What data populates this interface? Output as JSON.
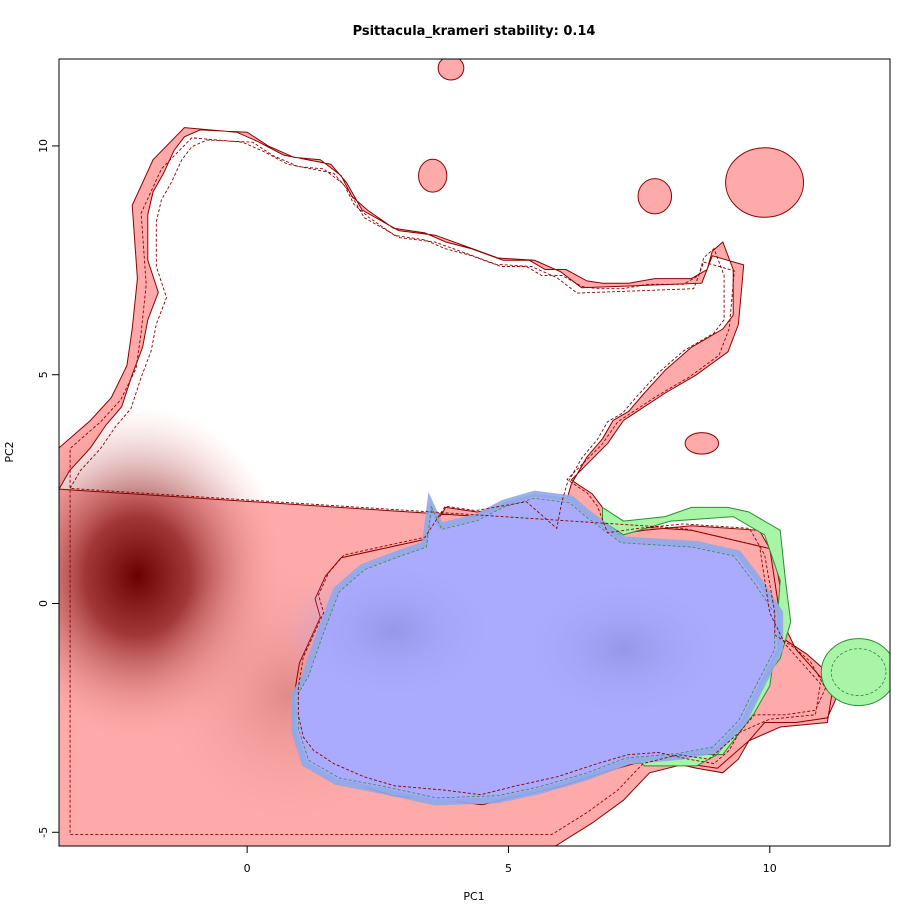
{
  "chart_data": {
    "type": "contour-density",
    "title": "Psittacula_krameri stability: 0.14",
    "xlabel": "PC1",
    "ylabel": "PC2",
    "xlim": [
      -3.6,
      12.3
    ],
    "ylim": [
      -5.3,
      11.9
    ],
    "x_ticks": [
      0,
      5,
      10
    ],
    "y_ticks": [
      -5,
      0,
      5,
      10
    ],
    "grid": false,
    "legend": "none",
    "regions": [
      {
        "id": "native-range",
        "color": "#ff9999",
        "outline_color": "#8b0000",
        "density_peak": [
          -2.1,
          0.6
        ],
        "outline": [
          [
            -3.6,
            2.5
          ],
          [
            -3.4,
            2.9
          ],
          [
            -3.0,
            3.4
          ],
          [
            -2.7,
            3.9
          ],
          [
            -2.4,
            4.3
          ],
          [
            -2.2,
            5.0
          ],
          [
            -2.0,
            5.6
          ],
          [
            -1.9,
            6.2
          ],
          [
            -1.7,
            6.8
          ],
          [
            -1.9,
            7.5
          ],
          [
            -1.9,
            8.5
          ],
          [
            -1.8,
            9.0
          ],
          [
            -1.6,
            9.4
          ],
          [
            -1.4,
            9.9
          ],
          [
            -1.2,
            10.2
          ],
          [
            -0.9,
            10.35
          ],
          [
            0.0,
            10.3
          ],
          [
            0.4,
            10.0
          ],
          [
            0.9,
            9.75
          ],
          [
            1.4,
            9.7
          ],
          [
            1.8,
            9.35
          ],
          [
            2.0,
            8.9
          ],
          [
            2.3,
            8.6
          ],
          [
            2.8,
            8.2
          ],
          [
            3.4,
            8.1
          ],
          [
            3.8,
            7.9
          ],
          [
            4.3,
            7.75
          ],
          [
            4.9,
            7.5
          ],
          [
            5.4,
            7.5
          ],
          [
            5.7,
            7.3
          ],
          [
            6.1,
            7.3
          ],
          [
            6.5,
            7.05
          ],
          [
            6.8,
            7.0
          ],
          [
            7.3,
            7.0
          ],
          [
            7.8,
            7.1
          ],
          [
            8.5,
            7.1
          ],
          [
            8.8,
            7.3
          ],
          [
            8.9,
            7.7
          ],
          [
            9.1,
            7.9
          ],
          [
            9.3,
            7.3
          ],
          [
            9.3,
            6.3
          ],
          [
            9.1,
            6.0
          ],
          [
            8.5,
            5.6
          ],
          [
            8.0,
            5.1
          ],
          [
            7.6,
            4.6
          ],
          [
            7.3,
            4.2
          ],
          [
            7.0,
            4.0
          ],
          [
            6.8,
            3.6
          ],
          [
            6.5,
            3.2
          ],
          [
            6.2,
            2.6
          ],
          [
            6.1,
            2.2
          ],
          [
            6.0,
            1.6
          ],
          [
            5.4,
            2.2
          ],
          [
            4.4,
            2.0
          ],
          [
            3.8,
            2.1
          ],
          [
            3.4,
            1.4
          ],
          [
            2.6,
            1.2
          ],
          [
            1.8,
            1.0
          ],
          [
            1.5,
            0.6
          ],
          [
            1.3,
            0.1
          ],
          [
            1.4,
            -0.3
          ],
          [
            1.2,
            -0.8
          ],
          [
            1.0,
            -1.3
          ],
          [
            0.9,
            -2.0
          ],
          [
            0.9,
            -2.6
          ],
          [
            1.0,
            -3.1
          ],
          [
            1.2,
            -3.4
          ],
          [
            1.6,
            -3.7
          ],
          [
            2.2,
            -4.0
          ],
          [
            2.8,
            -4.2
          ],
          [
            3.8,
            -4.3
          ],
          [
            4.5,
            -4.4
          ],
          [
            5.2,
            -4.2
          ],
          [
            6.0,
            -4.0
          ],
          [
            6.8,
            -3.7
          ],
          [
            7.4,
            -3.5
          ],
          [
            8.0,
            -3.45
          ],
          [
            8.6,
            -3.6
          ],
          [
            9.1,
            -3.7
          ],
          [
            9.4,
            -3.4
          ],
          [
            9.6,
            -3.0
          ],
          [
            9.9,
            -2.6
          ],
          [
            10.5,
            -2.6
          ],
          [
            11.1,
            -2.5
          ],
          [
            11.3,
            -2.0
          ],
          [
            11.0,
            -1.4
          ],
          [
            10.7,
            -1.1
          ],
          [
            10.3,
            -0.8
          ],
          [
            10.3,
            -0.3
          ],
          [
            10.1,
            1.0
          ],
          [
            9.8,
            1.6
          ],
          [
            8.5,
            1.7
          ],
          [
            7.6,
            1.6
          ],
          [
            7.0,
            1.5
          ],
          [
            6.8,
            2.1
          ],
          [
            6.6,
            2.4
          ],
          [
            6.2,
            2.7
          ],
          [
            6.9,
            3.5
          ],
          [
            7.2,
            4.0
          ],
          [
            7.6,
            4.3
          ],
          [
            8.0,
            4.6
          ],
          [
            8.6,
            5.0
          ],
          [
            9.2,
            5.5
          ],
          [
            9.4,
            6.1
          ],
          [
            9.5,
            7.4
          ],
          [
            8.9,
            7.6
          ],
          [
            8.7,
            7.0
          ],
          [
            6.4,
            6.9
          ],
          [
            6.0,
            7.25
          ],
          [
            5.5,
            7.5
          ],
          [
            4.8,
            7.55
          ],
          [
            4.2,
            7.8
          ],
          [
            3.6,
            8.05
          ],
          [
            2.9,
            8.15
          ],
          [
            2.2,
            8.6
          ],
          [
            1.9,
            9.2
          ],
          [
            1.6,
            9.6
          ],
          [
            0.7,
            9.8
          ],
          [
            0.2,
            10.1
          ],
          [
            -0.2,
            10.3
          ],
          [
            -1.2,
            10.4
          ],
          [
            -1.8,
            9.7
          ],
          [
            -2.2,
            8.7
          ],
          [
            -2.1,
            7.1
          ],
          [
            -2.2,
            6.0
          ],
          [
            -2.3,
            5.2
          ],
          [
            -2.6,
            4.5
          ],
          [
            -3.0,
            4.0
          ],
          [
            -3.6,
            3.4
          ],
          [
            -3.6,
            -5.3
          ],
          [
            5.9,
            -5.3
          ],
          [
            6.6,
            -4.8
          ],
          [
            7.2,
            -4.3
          ],
          [
            7.7,
            -3.7
          ],
          [
            8.4,
            -3.5
          ],
          [
            9.0,
            -3.6
          ],
          [
            9.6,
            -3.0
          ],
          [
            10.2,
            -2.7
          ],
          [
            11.1,
            -2.6
          ],
          [
            11.2,
            -1.9
          ],
          [
            10.5,
            -1.0
          ],
          [
            10.2,
            -0.3
          ],
          [
            10.0,
            1.2
          ],
          [
            8.5,
            1.6
          ]
        ]
      },
      {
        "id": "introduced-range",
        "color": "#90ee90",
        "outline_color": "#228b22",
        "density_peak": [
          11.7,
          -1.5
        ],
        "outline": [
          [
            6.8,
            2.1
          ],
          [
            7.2,
            1.8
          ],
          [
            8.0,
            1.9
          ],
          [
            8.5,
            2.1
          ],
          [
            9.2,
            2.1
          ],
          [
            9.6,
            2.0
          ],
          [
            10.2,
            1.6
          ],
          [
            10.3,
            0.5
          ],
          [
            10.4,
            -0.4
          ],
          [
            10.2,
            -1.2
          ],
          [
            9.8,
            -1.8
          ],
          [
            9.4,
            -2.6
          ],
          [
            9.0,
            -3.3
          ],
          [
            8.6,
            -3.55
          ],
          [
            7.6,
            -3.55
          ],
          [
            7.3,
            -3.2
          ],
          [
            8.3,
            -3.3
          ],
          [
            9.1,
            -3.3
          ],
          [
            9.7,
            -2.4
          ],
          [
            10.0,
            -1.8
          ],
          [
            10.1,
            -1.0
          ],
          [
            10.2,
            0.5
          ],
          [
            9.9,
            1.5
          ],
          [
            9.3,
            1.9
          ],
          [
            8.1,
            1.8
          ],
          [
            7.2,
            1.5
          ],
          [
            6.8,
            1.8
          ]
        ]
      },
      {
        "id": "overlap",
        "color": "#aaaaff",
        "outline_color": "#4169e1",
        "density_peaks": [
          [
            2.8,
            -0.6
          ],
          [
            7.2,
            -1.0
          ]
        ],
        "outline": [
          [
            3.5,
            2.2
          ],
          [
            3.7,
            1.7
          ],
          [
            4.4,
            1.9
          ],
          [
            4.9,
            2.2
          ],
          [
            5.5,
            2.4
          ],
          [
            6.2,
            2.3
          ],
          [
            6.5,
            2.0
          ],
          [
            7.2,
            1.4
          ],
          [
            8.6,
            1.3
          ],
          [
            9.4,
            1.1
          ],
          [
            9.8,
            0.5
          ],
          [
            10.2,
            -0.2
          ],
          [
            10.2,
            -1.0
          ],
          [
            9.8,
            -1.9
          ],
          [
            9.5,
            -2.6
          ],
          [
            9.0,
            -3.2
          ],
          [
            8.3,
            -3.35
          ],
          [
            7.3,
            -3.45
          ],
          [
            6.5,
            -3.8
          ],
          [
            5.6,
            -4.1
          ],
          [
            4.8,
            -4.3
          ],
          [
            3.6,
            -4.35
          ],
          [
            2.6,
            -4.1
          ],
          [
            1.7,
            -3.9
          ],
          [
            1.1,
            -3.5
          ],
          [
            0.9,
            -2.8
          ],
          [
            0.9,
            -2.0
          ],
          [
            1.1,
            -1.6
          ],
          [
            1.4,
            -0.6
          ],
          [
            1.7,
            0.3
          ],
          [
            2.2,
            0.8
          ],
          [
            2.9,
            1.1
          ],
          [
            3.4,
            1.3
          ]
        ]
      }
    ],
    "islands": [
      {
        "x": 3.9,
        "y": 11.7,
        "w": 0.3,
        "h": 0.3
      },
      {
        "x": 3.55,
        "y": 9.35,
        "w": 0.35,
        "h": 0.5
      },
      {
        "x": 7.8,
        "y": 8.9,
        "w": 0.45,
        "h": 0.55
      },
      {
        "x": 9.9,
        "y": 9.2,
        "w": 1.3,
        "h": 1.3
      },
      {
        "x": 8.7,
        "y": 3.5,
        "w": 0.45,
        "h": 0.25
      }
    ],
    "green_island": {
      "x": 11.7,
      "y": -1.5,
      "w": 1.2,
      "h": 1.2
    }
  }
}
